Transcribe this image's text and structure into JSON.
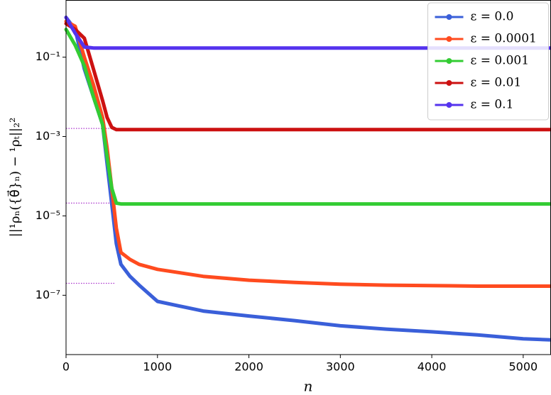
{
  "chart_data": {
    "type": "line",
    "x_label": "n",
    "y_label": "||¹ρₙ({θ⃗}ₙ) − ¹ρₜ||₂²",
    "log_y": true,
    "legend": "upper right",
    "x": [
      0,
      100,
      200,
      300,
      400,
      450,
      500,
      550,
      600,
      700,
      800,
      1000,
      1500,
      2000,
      2500,
      3000,
      3500,
      4000,
      4500,
      5000,
      5300
    ],
    "series": [
      {
        "name": "ε = 0.0",
        "color": "#3a5fd9",
        "values": [
          1.0,
          0.5,
          0.05,
          0.01,
          0.002,
          0.0002,
          2e-05,
          2e-06,
          6e-07,
          3e-07,
          1.8e-07,
          7e-08,
          4e-08,
          3e-08,
          2.3e-08,
          1.7e-08,
          1.4e-08,
          1.2e-08,
          1e-08,
          8e-09,
          7.5e-09
        ]
      },
      {
        "name": "ε = 0.0001",
        "color": "#ff4b1f",
        "values": [
          0.8,
          0.6,
          0.1,
          0.02,
          0.003,
          0.0005,
          5e-05,
          5e-06,
          1.2e-06,
          8e-07,
          6e-07,
          4.5e-07,
          3e-07,
          2.4e-07,
          2.1e-07,
          1.9e-07,
          1.8e-07,
          1.75e-07,
          1.7e-07,
          1.7e-07,
          1.7e-07
        ]
      },
      {
        "name": "ε = 0.001",
        "color": "#33cc33",
        "values": [
          0.5,
          0.2,
          0.06,
          0.01,
          0.002,
          0.0003,
          5e-05,
          2.1e-05,
          2e-05,
          2e-05,
          2e-05,
          2e-05,
          2e-05,
          2e-05,
          2e-05,
          2e-05,
          2e-05,
          2e-05,
          2e-05,
          2e-05,
          2e-05
        ]
      },
      {
        "name": "ε = 0.01",
        "color": "#cc1111",
        "values": [
          0.7,
          0.5,
          0.3,
          0.05,
          0.008,
          0.003,
          0.0017,
          0.0015,
          0.0015,
          0.0015,
          0.0015,
          0.0015,
          0.0015,
          0.0015,
          0.0015,
          0.0015,
          0.0015,
          0.0015,
          0.0015,
          0.0015,
          0.0015
        ]
      },
      {
        "name": "ε = 0.1",
        "color": "#5533ee",
        "values": [
          1.0,
          0.4,
          0.18,
          0.17,
          0.17,
          0.17,
          0.17,
          0.17,
          0.17,
          0.17,
          0.17,
          0.17,
          0.17,
          0.17,
          0.17,
          0.17,
          0.17,
          0.17,
          0.17,
          0.17,
          0.17
        ]
      }
    ],
    "reference_lines": {
      "color": "#aa33cc",
      "values": [
        0.0016,
        2.1e-05,
        2e-07
      ]
    },
    "xlim": [
      0,
      5300
    ],
    "xticks": [
      0,
      1000,
      2000,
      3000,
      4000,
      5000
    ],
    "ylim": [
      3.2e-09,
      2.7
    ],
    "yticks": [
      {
        "value": 0.1,
        "label": "10⁻¹"
      },
      {
        "value": 0.001,
        "label": "10⁻³"
      },
      {
        "value": 1e-05,
        "label": "10⁻⁵"
      },
      {
        "value": 1e-07,
        "label": "10⁻⁷"
      }
    ]
  }
}
